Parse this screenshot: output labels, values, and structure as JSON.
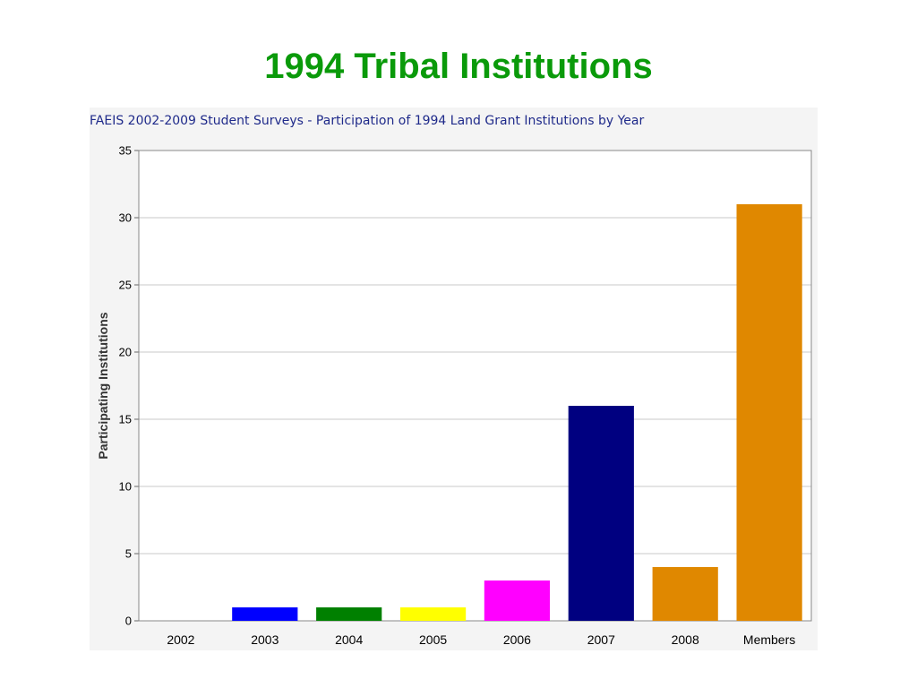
{
  "slide": {
    "title": "1994 Tribal Institutions",
    "title_color": "#0a9a0a"
  },
  "chart_data": {
    "type": "bar",
    "title": "FAEIS 2002-2009 Student Surveys - Participation of 1994 Land Grant Institutions by Year",
    "title_color": "#1f2a8a",
    "xlabel": "",
    "ylabel": "Participating Institutions",
    "categories": [
      "2002",
      "2003",
      "2004",
      "2005",
      "2006",
      "2007",
      "2008",
      "Members"
    ],
    "values": [
      0,
      1,
      1,
      1,
      3,
      16,
      4,
      31
    ],
    "colors": [
      "#0000ff",
      "#0000ff",
      "#008000",
      "#ffff00",
      "#ff00ff",
      "#000080",
      "#e08800",
      "#e08800"
    ],
    "ylim": [
      0,
      35
    ],
    "yticks": [
      0,
      5,
      10,
      15,
      20,
      25,
      30,
      35
    ],
    "grid": true,
    "legend": "none"
  }
}
